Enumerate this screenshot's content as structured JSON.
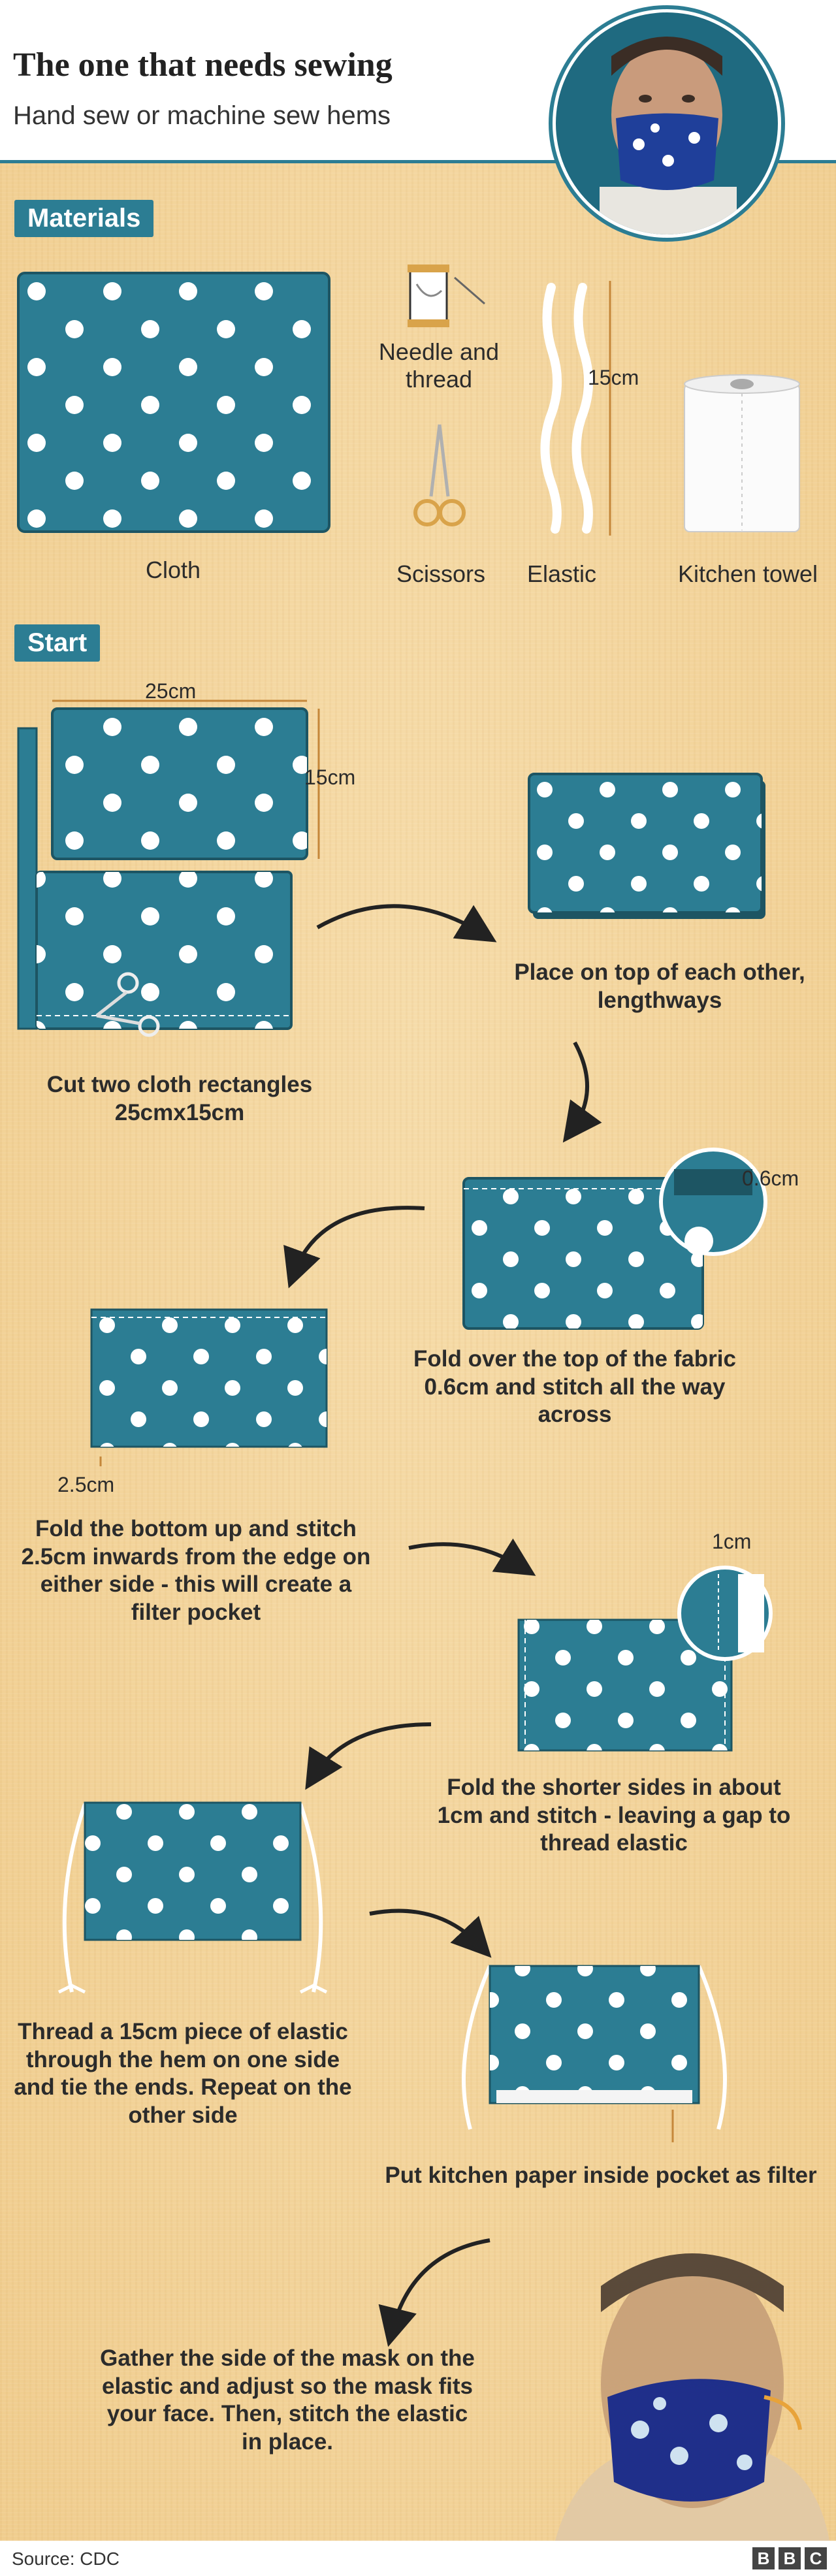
{
  "header": {
    "title": "The one that needs sewing",
    "subtitle": "Hand sew or machine sew hems"
  },
  "sections": {
    "materials": "Materials",
    "start": "Start"
  },
  "materials": {
    "cloth": "Cloth",
    "needle_thread": "Needle and thread",
    "scissors": "Scissors",
    "elastic": "Elastic",
    "elastic_length": "15cm",
    "kitchen_towel": "Kitchen towel"
  },
  "measurements": {
    "width": "25cm",
    "height": "15cm",
    "fold": "0.6cm",
    "inward": "2.5cm",
    "sides": "1cm"
  },
  "steps": {
    "cut": "Cut two cloth rectangles 25cmx15cm",
    "place": "Place on top of each other, lengthways",
    "fold_top": "Fold over the top of the fabric 0.6cm and stitch all the way across",
    "fold_bottom": "Fold the bottom up and stitch 2.5cm inwards from the edge on either side - this will create a filter pocket",
    "fold_sides": "Fold the shorter sides in about 1cm and stitch - leaving a gap to thread elastic",
    "thread": "Thread a 15cm piece of elastic through the hem on one side and tie the ends. Repeat on the other side",
    "kitchen_paper": "Put kitchen paper inside pocket as filter",
    "gather": "Gather the side of the mask on the elastic and adjust so the mask fits your face. Then, stitch the elastic in place."
  },
  "footer": {
    "source": "Source: CDC",
    "logo": [
      "B",
      "B",
      "C"
    ]
  },
  "colors": {
    "fabric": "#2c7d93",
    "accent_header_rule": "#2c7d93",
    "background": "#f3d49a"
  }
}
